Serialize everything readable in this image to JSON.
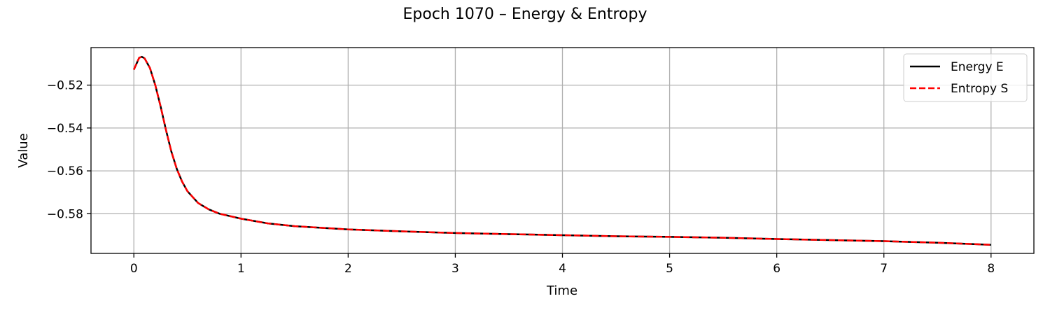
{
  "chart_data": {
    "type": "line",
    "title": "Epoch 1070 – Energy & Entropy",
    "xlabel": "Time",
    "ylabel": "Value",
    "xlim": [
      -0.4,
      8.4
    ],
    "ylim": [
      -0.5985,
      -0.5025
    ],
    "xticks": [
      0,
      1,
      2,
      3,
      4,
      5,
      6,
      7,
      8
    ],
    "xtick_labels": [
      "0",
      "1",
      "2",
      "3",
      "4",
      "5",
      "6",
      "7",
      "8"
    ],
    "yticks": [
      -0.52,
      -0.54,
      -0.56,
      -0.58
    ],
    "ytick_labels": [
      "−0.52",
      "−0.54",
      "−0.56",
      "−0.58"
    ],
    "grid": true,
    "legend_position": "top-right",
    "x": [
      0,
      0.05,
      0.075,
      0.1,
      0.15,
      0.2,
      0.25,
      0.3,
      0.35,
      0.4,
      0.45,
      0.5,
      0.6,
      0.7,
      0.8,
      1.0,
      1.25,
      1.5,
      2.0,
      2.5,
      3.0,
      3.5,
      4.0,
      4.5,
      5.0,
      5.5,
      6.0,
      6.5,
      7.0,
      7.5,
      8.0
    ],
    "series": [
      {
        "name": "Energy E",
        "color": "#000000",
        "style": "solid",
        "values": [
          -0.5128,
          -0.5072,
          -0.5068,
          -0.5075,
          -0.512,
          -0.52,
          -0.53,
          -0.541,
          -0.551,
          -0.559,
          -0.565,
          -0.5695,
          -0.575,
          -0.578,
          -0.58,
          -0.5823,
          -0.5845,
          -0.5858,
          -0.5873,
          -0.5882,
          -0.589,
          -0.5895,
          -0.59,
          -0.5905,
          -0.5908,
          -0.5912,
          -0.5918,
          -0.5923,
          -0.5928,
          -0.5935,
          -0.5945
        ]
      },
      {
        "name": "Entropy S",
        "color": "#ff0000",
        "style": "dashed",
        "values": [
          -0.5128,
          -0.5072,
          -0.5068,
          -0.5075,
          -0.512,
          -0.52,
          -0.53,
          -0.541,
          -0.551,
          -0.559,
          -0.565,
          -0.5695,
          -0.575,
          -0.578,
          -0.58,
          -0.5823,
          -0.5845,
          -0.5858,
          -0.5873,
          -0.5882,
          -0.589,
          -0.5895,
          -0.59,
          -0.5905,
          -0.5908,
          -0.5912,
          -0.5918,
          -0.5923,
          -0.5928,
          -0.5935,
          -0.5945
        ]
      }
    ]
  }
}
